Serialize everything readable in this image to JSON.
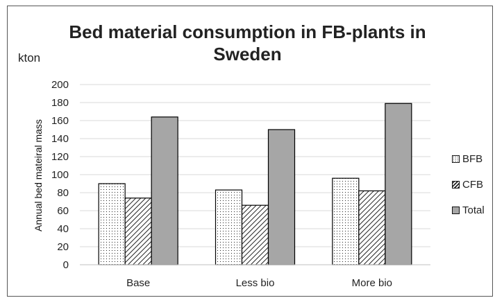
{
  "chart_data": {
    "type": "bar",
    "title_lines": [
      "Bed material consumption in FB-plants in",
      "Sweden"
    ],
    "unit_label": "kton",
    "ylabel": "Annual bed mateiral mass",
    "xlabel": "",
    "categories": [
      "Base",
      "Less bio",
      "More bio"
    ],
    "series": [
      {
        "name": "BFB",
        "values": [
          90,
          83,
          96
        ],
        "pattern": "dots",
        "color": "#ffffff"
      },
      {
        "name": "CFB",
        "values": [
          74,
          66,
          82
        ],
        "pattern": "diagonal-hatch",
        "color": "#ffffff"
      },
      {
        "name": "Total",
        "values": [
          164,
          150,
          179
        ],
        "pattern": "solid",
        "color": "#a6a6a6"
      }
    ],
    "ylim": [
      0,
      200
    ],
    "yticks": [
      0,
      20,
      40,
      60,
      80,
      100,
      120,
      140,
      160,
      180,
      200
    ],
    "grid": true,
    "legend_position": "right"
  }
}
